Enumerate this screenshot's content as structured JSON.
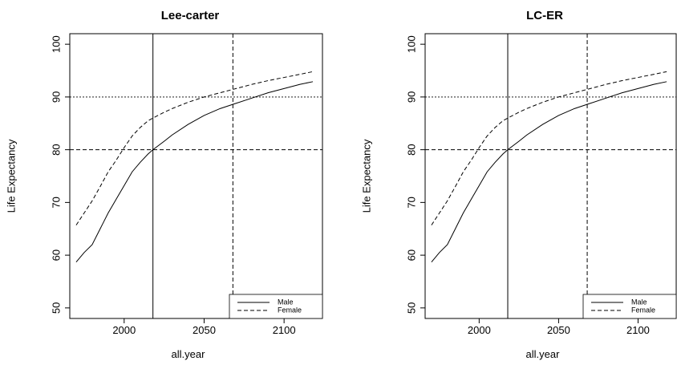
{
  "chart_data": [
    {
      "type": "line",
      "title": "Lee-carter",
      "xlabel": "all.year",
      "ylabel": "Life Expectancy",
      "xlim": [
        1966,
        2124
      ],
      "ylim": [
        48,
        102
      ],
      "x_ticks": [
        2000,
        2050,
        2100
      ],
      "y_ticks": [
        50,
        60,
        70,
        80,
        90,
        100
      ],
      "hlines": [
        {
          "y": 80,
          "style": "dashed"
        },
        {
          "y": 90,
          "style": "dotted"
        }
      ],
      "vlines": [
        {
          "x": 2018,
          "style": "solid"
        },
        {
          "x": 2068,
          "style": "dashed"
        }
      ],
      "legend": {
        "position": "bottom-right",
        "entries": [
          "Male",
          "Female"
        ]
      },
      "series": [
        {
          "name": "Male",
          "style": "solid",
          "x": [
            1970,
            1975,
            1980,
            1985,
            1990,
            1995,
            2000,
            2005,
            2010,
            2015,
            2018,
            2025,
            2030,
            2040,
            2050,
            2060,
            2070,
            2080,
            2090,
            2100,
            2110,
            2118
          ],
          "y": [
            58.7,
            60.5,
            62.0,
            65.0,
            68.0,
            70.6,
            73.2,
            75.8,
            77.6,
            79.2,
            80.0,
            81.6,
            82.8,
            84.8,
            86.5,
            87.8,
            88.8,
            89.8,
            90.8,
            91.6,
            92.4,
            92.9
          ]
        },
        {
          "name": "Female",
          "style": "dashed",
          "x": [
            1970,
            1975,
            1980,
            1985,
            1990,
            1995,
            2000,
            2005,
            2010,
            2015,
            2018,
            2025,
            2030,
            2040,
            2050,
            2060,
            2070,
            2080,
            2090,
            2100,
            2110,
            2118
          ],
          "y": [
            65.7,
            68.0,
            70.3,
            73.0,
            75.8,
            78.0,
            80.4,
            82.6,
            84.2,
            85.5,
            86.0,
            87.1,
            87.8,
            89.0,
            90.0,
            90.8,
            91.6,
            92.4,
            93.1,
            93.7,
            94.3,
            94.8
          ]
        }
      ]
    },
    {
      "type": "line",
      "title": "LC-ER",
      "xlabel": "all.year",
      "ylabel": "Life Expectancy",
      "xlim": [
        1966,
        2124
      ],
      "ylim": [
        48,
        102
      ],
      "x_ticks": [
        2000,
        2050,
        2100
      ],
      "y_ticks": [
        50,
        60,
        70,
        80,
        90,
        100
      ],
      "hlines": [
        {
          "y": 80,
          "style": "dashed"
        },
        {
          "y": 90,
          "style": "dotted"
        }
      ],
      "vlines": [
        {
          "x": 2018,
          "style": "solid"
        },
        {
          "x": 2068,
          "style": "dashed"
        }
      ],
      "legend": {
        "position": "bottom-right",
        "entries": [
          "Male",
          "Female"
        ]
      },
      "series": [
        {
          "name": "Male",
          "style": "solid",
          "x": [
            1970,
            1975,
            1980,
            1985,
            1990,
            1995,
            2000,
            2005,
            2010,
            2015,
            2018,
            2025,
            2030,
            2040,
            2050,
            2060,
            2070,
            2080,
            2090,
            2100,
            2110,
            2118
          ],
          "y": [
            58.7,
            60.5,
            62.0,
            65.0,
            68.0,
            70.6,
            73.2,
            75.8,
            77.6,
            79.2,
            80.0,
            81.6,
            82.8,
            84.8,
            86.5,
            87.8,
            88.8,
            89.8,
            90.8,
            91.6,
            92.4,
            92.9
          ]
        },
        {
          "name": "Female",
          "style": "dashed",
          "x": [
            1970,
            1975,
            1980,
            1985,
            1990,
            1995,
            2000,
            2005,
            2010,
            2015,
            2018,
            2025,
            2030,
            2040,
            2050,
            2060,
            2070,
            2080,
            2090,
            2100,
            2110,
            2118
          ],
          "y": [
            65.7,
            68.0,
            70.3,
            73.0,
            75.8,
            78.0,
            80.4,
            82.6,
            84.2,
            85.5,
            86.0,
            87.1,
            87.8,
            89.0,
            90.0,
            90.8,
            91.6,
            92.4,
            93.1,
            93.7,
            94.3,
            94.8
          ]
        }
      ]
    }
  ]
}
